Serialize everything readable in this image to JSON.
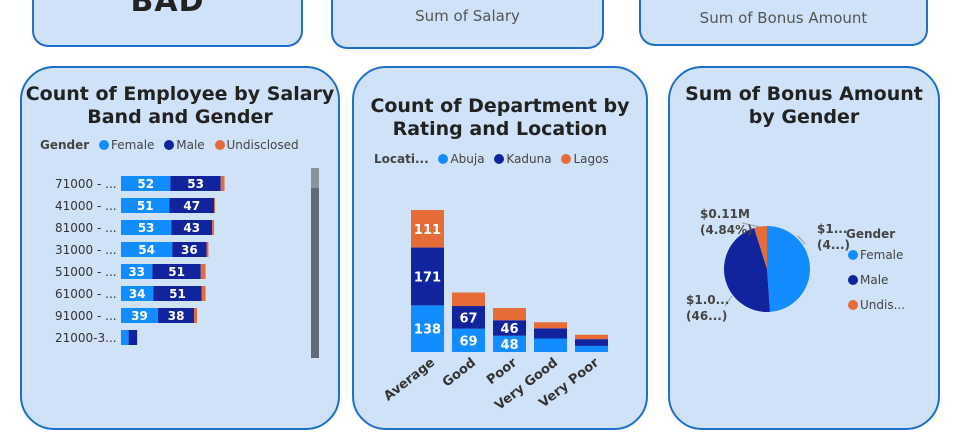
{
  "kpis": [
    {
      "value": "BAD",
      "label": ""
    },
    {
      "value": "",
      "label": "Sum of Salary"
    },
    {
      "value": "",
      "label": "Sum of Bonus Amount"
    }
  ],
  "colors": {
    "female": "#118dff",
    "male": "#12239e",
    "undisclosed": "#e66c37",
    "lagos": "#e66c37"
  },
  "chart_data": [
    {
      "type": "bar",
      "orientation": "horizontal-stacked",
      "title": "Count of Employee by Salary Band and Gender",
      "legend_title": "Gender",
      "legend_placement": "top",
      "categories": [
        "71000 - ...",
        "41000 - ...",
        "81000 - ...",
        "31000 - ...",
        "51000 - ...",
        "61000 - ...",
        "91000 - ...",
        "21000-3..."
      ],
      "series": [
        {
          "name": "Female",
          "values": [
            52,
            51,
            53,
            54,
            33,
            34,
            39,
            8
          ]
        },
        {
          "name": "Male",
          "values": [
            53,
            47,
            43,
            36,
            51,
            51,
            38,
            9
          ]
        },
        {
          "name": "Undisclosed",
          "values": [
            4,
            1,
            2,
            2,
            5,
            4,
            3,
            0
          ]
        }
      ]
    },
    {
      "type": "bar",
      "orientation": "vertical-stacked",
      "title": "Count of Department by Rating and Location",
      "legend_title": "Locati...",
      "legend_placement": "top",
      "categories": [
        "Average",
        "Good",
        "Poor",
        "Very Good",
        "Very Poor"
      ],
      "series": [
        {
          "name": "Abuja",
          "values": [
            138,
            69,
            48,
            40,
            18
          ]
        },
        {
          "name": "Kaduna",
          "values": [
            171,
            67,
            46,
            30,
            20
          ]
        },
        {
          "name": "Lagos",
          "values": [
            111,
            40,
            36,
            18,
            13
          ]
        }
      ]
    },
    {
      "type": "pie",
      "title": "Sum of Bonus Amount by Gender",
      "legend_title": "Gender",
      "legend_placement": "right",
      "slices": [
        {
          "name": "Female",
          "value": 48.9,
          "label": "$1...\n(4...)"
        },
        {
          "name": "Male",
          "value": 46.26,
          "label": "$1.0...\n(46...)"
        },
        {
          "name": "Undisclosed",
          "value": 4.84,
          "label": "$0.11M\n(4.84%)"
        }
      ],
      "legend_entries": [
        "Female",
        "Male",
        "Undis..."
      ]
    }
  ]
}
